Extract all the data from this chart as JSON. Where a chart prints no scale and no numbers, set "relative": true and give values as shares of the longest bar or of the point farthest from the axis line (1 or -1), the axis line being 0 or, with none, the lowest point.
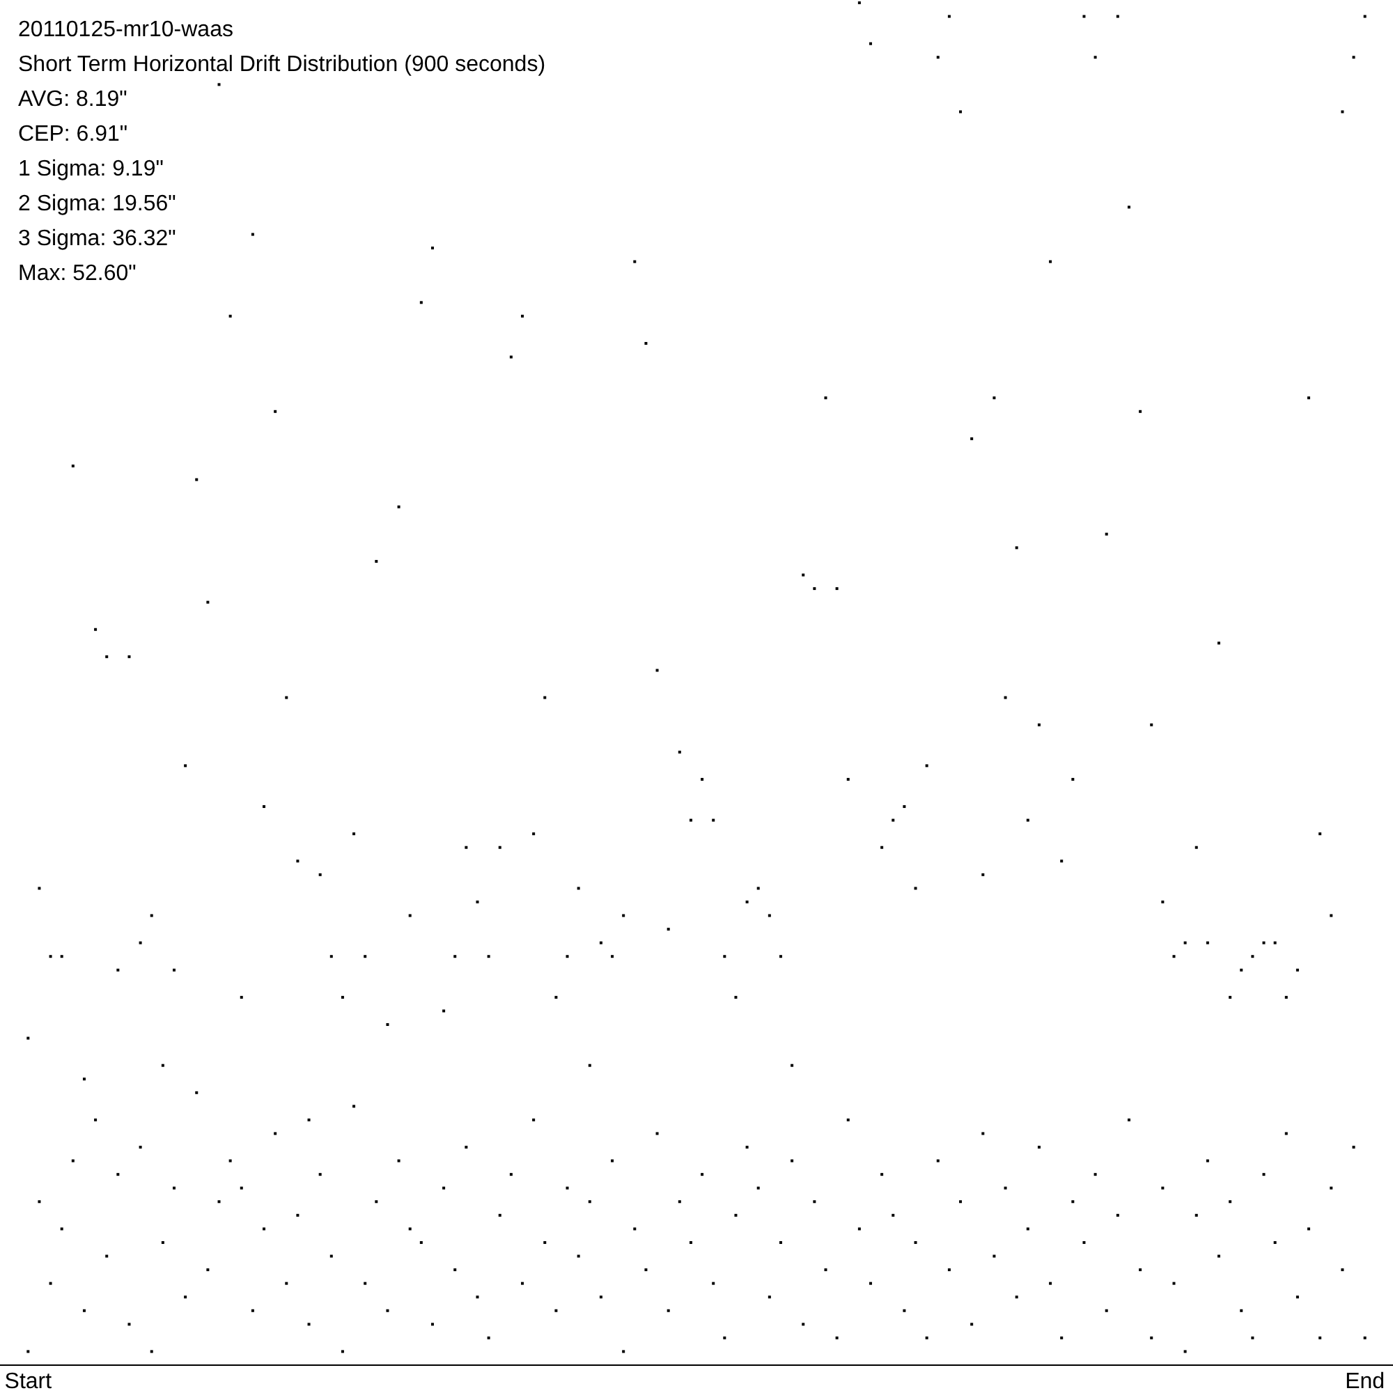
{
  "chart_data": {
    "type": "scatter",
    "title": "20110125-mr10-waas",
    "subtitle": "Short Term Horizontal Drift Distribution (900 seconds)",
    "annotations": [
      "AVG: 8.19\"",
      "CEP: 6.91\"",
      "1 Sigma: 9.19\"",
      "2 Sigma: 19.56\"",
      "3 Sigma: 36.32\"",
      "Max: 52.60\""
    ],
    "relative": true,
    "marker": "square",
    "categories": [
      "Start",
      null,
      null,
      null,
      null,
      null,
      null,
      null,
      null,
      null,
      null,
      null,
      null,
      null,
      null,
      null,
      null,
      null,
      null,
      null,
      null,
      null,
      null,
      null,
      null,
      null,
      null,
      null,
      null,
      null,
      null,
      null,
      null,
      null,
      null,
      null,
      null,
      null,
      null,
      null,
      null,
      null,
      null,
      null,
      null,
      null,
      null,
      null,
      null,
      null,
      null,
      null,
      null,
      null,
      null,
      null,
      null,
      null,
      null,
      null,
      null,
      null,
      null,
      null,
      null,
      null,
      null,
      null,
      null,
      null,
      null,
      null,
      null,
      null,
      null,
      null,
      null,
      null,
      null,
      null,
      null,
      null,
      null,
      null,
      null,
      null,
      null,
      null,
      null,
      null,
      null,
      null,
      null,
      null,
      null,
      null,
      null,
      null,
      null,
      null,
      null,
      null,
      null,
      null,
      null,
      null,
      null,
      null,
      null,
      null,
      null,
      null,
      null,
      null,
      null,
      null,
      null,
      null,
      null,
      "End"
    ],
    "series": [
      {
        "color": "#000000",
        "values": [
          0.24,
          0.35,
          0.3,
          0.3,
          0.66,
          0.21,
          0.54,
          0.52,
          0.29,
          0.52,
          0.31,
          0.33,
          0.22,
          0.29,
          0.44,
          0.65,
          0.56,
          0.94,
          0.77,
          0.27,
          0.83,
          0.41,
          0.7,
          0.49,
          0.37,
          0.18,
          0.36,
          0.3,
          0.27,
          0.39,
          0.3,
          0.59,
          0.25,
          0.63,
          0.33,
          0.78,
          0.82,
          0.26,
          0.3,
          0.38,
          0.34,
          0.3,
          0.38,
          0.74,
          0.77,
          0.39,
          0.49,
          0.27,
          0.3,
          0.35,
          0.22,
          0.31,
          0.3,
          0.33,
          0.81,
          0.75,
          0.51,
          0.32,
          0.45,
          0.4,
          0.43,
          0.4,
          0.3,
          0.27,
          0.34,
          0.35,
          0.33,
          0.3,
          0.22,
          0.58,
          0.57,
          0.71,
          0.57,
          0.43,
          1.0,
          0.97,
          0.38,
          0.4,
          0.41,
          0.35,
          0.44,
          0.96,
          0.99,
          0.92,
          0.68,
          0.36,
          0.71,
          0.49,
          0.6,
          0.4,
          0.47,
          0.81,
          0.37,
          0.43,
          0.99,
          0.96,
          0.61,
          0.99,
          0.85,
          0.7,
          0.47,
          0.34,
          0.3,
          0.31,
          0.38,
          0.31,
          0.53,
          0.27,
          0.29,
          0.3,
          0.31,
          0.31,
          0.27,
          0.29,
          0.71,
          0.39,
          0.33,
          0.92,
          0.96,
          0.99
        ]
      },
      {
        "color": "#000000",
        "values": [
          0.01,
          0.12,
          0.06,
          0.1,
          0.15,
          0.04,
          0.18,
          0.08,
          0.14,
          0.03,
          0.16,
          0.01,
          0.09,
          0.13,
          0.05,
          0.2,
          0.07,
          0.12,
          0.15,
          0.13,
          0.04,
          0.1,
          0.17,
          0.06,
          0.11,
          0.03,
          0.14,
          0.08,
          0.01,
          0.19,
          0.06,
          0.12,
          0.04,
          0.15,
          0.1,
          0.09,
          0.03,
          0.13,
          0.07,
          0.16,
          0.05,
          0.02,
          0.11,
          0.14,
          0.06,
          0.18,
          0.09,
          0.04,
          0.13,
          0.08,
          0.12,
          0.05,
          0.15,
          0.01,
          0.1,
          0.07,
          0.17,
          0.04,
          0.12,
          0.09,
          0.14,
          0.06,
          0.02,
          0.11,
          0.16,
          0.13,
          0.05,
          0.09,
          0.15,
          0.03,
          0.12,
          0.07,
          0.02,
          0.18,
          0.1,
          0.06,
          0.14,
          0.11,
          0.04,
          0.09,
          0.02,
          0.15,
          0.07,
          0.12,
          0.03,
          0.17,
          0.08,
          0.13,
          0.05,
          0.1,
          0.16,
          0.06,
          0.02,
          0.12,
          0.09,
          0.14,
          0.04,
          0.11,
          0.18,
          0.07,
          0.02,
          0.13,
          0.06,
          0.01,
          0.11,
          0.15,
          0.08,
          0.12,
          0.04,
          0.02,
          0.14,
          0.09,
          0.17,
          0.05,
          0.1,
          0.02,
          0.13,
          0.07,
          0.16,
          0.02
        ]
      }
    ]
  }
}
